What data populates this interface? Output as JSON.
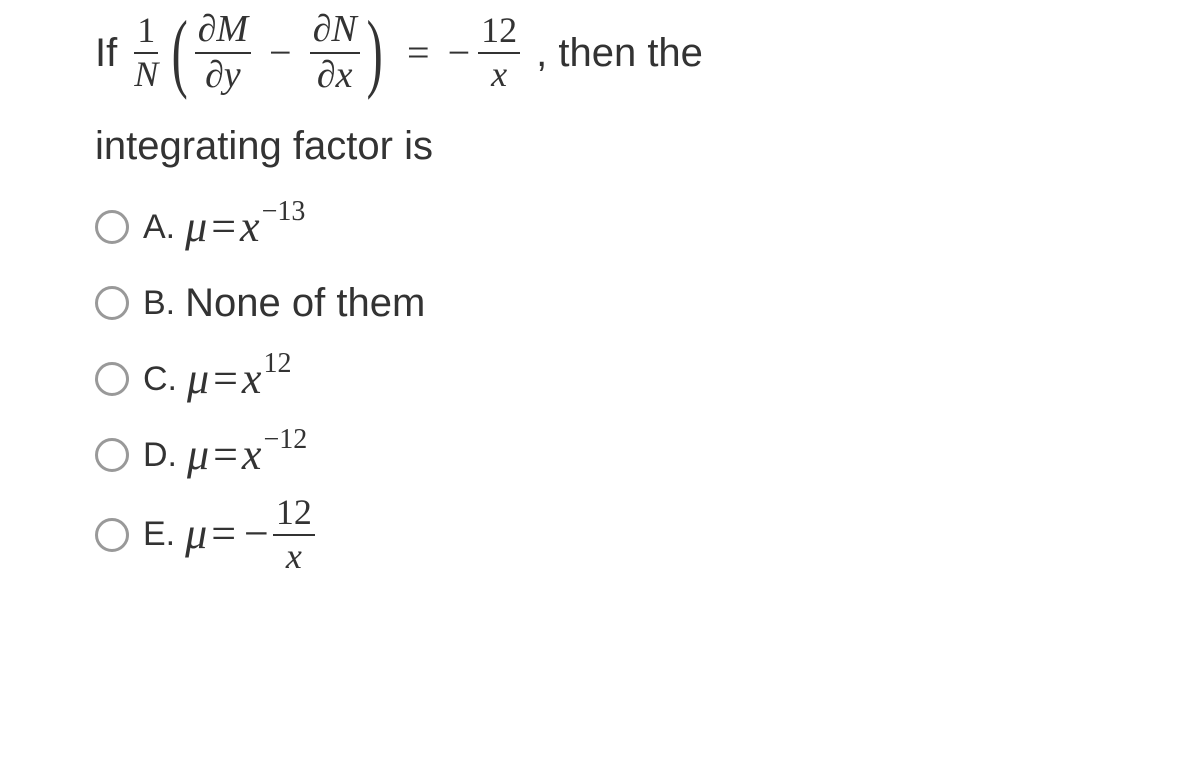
{
  "question": {
    "if_label": "If",
    "then_label": ", then the",
    "line2": "integrating factor is",
    "main_frac": {
      "num": "1",
      "den": "N"
    },
    "term1": {
      "num": "∂M",
      "den": "∂y"
    },
    "minus": "−",
    "term2": {
      "num": "∂N",
      "den": "∂x"
    },
    "equals": "=",
    "neg": "−",
    "rhs": {
      "num": "12",
      "den": "x"
    }
  },
  "options": {
    "A": {
      "letter": "A.",
      "mu": "μ",
      "eq": "=",
      "var": "x",
      "sup": "−13"
    },
    "B": {
      "letter": "B.",
      "text": "None of them"
    },
    "C": {
      "letter": "C.",
      "mu": "μ",
      "eq": "=",
      "var": "x",
      "sup": "12"
    },
    "D": {
      "letter": "D.",
      "mu": "μ",
      "eq": "=",
      "var": "x",
      "sup": "−12"
    },
    "E": {
      "letter": "E.",
      "mu": "μ",
      "eq": "=",
      "neg": "−",
      "frac": {
        "num": "12",
        "den": "x"
      }
    }
  },
  "colors": {
    "text": "#333333",
    "radio_border": "#999999",
    "background": "#ffffff"
  },
  "fonts": {
    "body_family": "Arial, Helvetica, sans-serif",
    "math_family": "Times New Roman, serif",
    "question_size_pt": 30,
    "option_letter_size_pt": 26,
    "math_size_pt": 33,
    "superscript_size_pt": 21
  }
}
